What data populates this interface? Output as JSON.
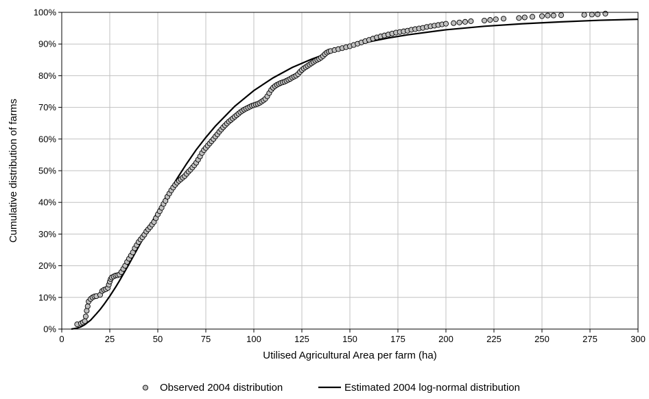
{
  "chart_data": {
    "type": "scatter",
    "xlabel": "Utilised Agricultural Area per farm (ha)",
    "ylabel": "Cumulative distribution of farms",
    "xlim": [
      0,
      300
    ],
    "ylim": [
      0,
      1
    ],
    "x_ticks": [
      0,
      25,
      50,
      75,
      100,
      125,
      150,
      175,
      200,
      225,
      250,
      275,
      300
    ],
    "x_tick_labels": [
      "0",
      "25",
      "50",
      "75",
      "100",
      "125",
      "150",
      "175",
      "200",
      "225",
      "250",
      "275",
      "300"
    ],
    "y_ticks": [
      0,
      0.1,
      0.2,
      0.3,
      0.4,
      0.5,
      0.6,
      0.7,
      0.8,
      0.9,
      1.0
    ],
    "y_tick_labels": [
      "0%",
      "10%",
      "20%",
      "30%",
      "40%",
      "50%",
      "60%",
      "70%",
      "80%",
      "90%",
      "100%"
    ],
    "grid": true,
    "legend_position": "bottom",
    "series": [
      {
        "name": "Observed 2004 distribution",
        "kind": "scatter",
        "marker": "circle",
        "color": "#bfbfbf",
        "edge_color": "#000000",
        "points": [
          [
            8,
            0.015
          ],
          [
            10,
            0.018
          ],
          [
            11,
            0.021
          ],
          [
            12,
            0.025
          ],
          [
            12.5,
            0.04
          ],
          [
            13,
            0.058
          ],
          [
            13.5,
            0.072
          ],
          [
            14,
            0.087
          ],
          [
            15,
            0.095
          ],
          [
            16,
            0.1
          ],
          [
            17,
            0.103
          ],
          [
            18,
            0.104
          ],
          [
            20,
            0.108
          ],
          [
            21,
            0.12
          ],
          [
            22,
            0.124
          ],
          [
            23,
            0.126
          ],
          [
            24,
            0.13
          ],
          [
            24.5,
            0.14
          ],
          [
            25,
            0.15
          ],
          [
            25.5,
            0.158
          ],
          [
            26,
            0.163
          ],
          [
            27,
            0.166
          ],
          [
            28,
            0.169
          ],
          [
            29,
            0.17
          ],
          [
            30,
            0.172
          ],
          [
            31,
            0.18
          ],
          [
            32,
            0.19
          ],
          [
            33,
            0.2
          ],
          [
            34,
            0.212
          ],
          [
            35,
            0.222
          ],
          [
            36,
            0.232
          ],
          [
            37,
            0.242
          ],
          [
            38,
            0.255
          ],
          [
            39,
            0.265
          ],
          [
            40,
            0.275
          ],
          [
            41,
            0.283
          ],
          [
            42,
            0.29
          ],
          [
            43,
            0.298
          ],
          [
            44,
            0.308
          ],
          [
            45,
            0.315
          ],
          [
            46,
            0.322
          ],
          [
            47,
            0.33
          ],
          [
            48,
            0.338
          ],
          [
            49,
            0.35
          ],
          [
            50,
            0.362
          ],
          [
            51,
            0.372
          ],
          [
            52,
            0.383
          ],
          [
            53,
            0.395
          ],
          [
            54,
            0.405
          ],
          [
            55,
            0.418
          ],
          [
            56,
            0.428
          ],
          [
            57,
            0.438
          ],
          [
            58,
            0.447
          ],
          [
            59,
            0.455
          ],
          [
            60,
            0.462
          ],
          [
            61,
            0.468
          ],
          [
            62,
            0.473
          ],
          [
            63,
            0.478
          ],
          [
            64,
            0.483
          ],
          [
            65,
            0.49
          ],
          [
            66,
            0.497
          ],
          [
            67,
            0.503
          ],
          [
            68,
            0.51
          ],
          [
            69,
            0.517
          ],
          [
            70,
            0.525
          ],
          [
            71,
            0.535
          ],
          [
            72,
            0.545
          ],
          [
            73,
            0.556
          ],
          [
            74,
            0.565
          ],
          [
            75,
            0.572
          ],
          [
            76,
            0.579
          ],
          [
            77,
            0.586
          ],
          [
            78,
            0.593
          ],
          [
            79,
            0.6
          ],
          [
            80,
            0.608
          ],
          [
            81,
            0.615
          ],
          [
            82,
            0.623
          ],
          [
            83,
            0.63
          ],
          [
            84,
            0.637
          ],
          [
            85,
            0.643
          ],
          [
            86,
            0.649
          ],
          [
            87,
            0.655
          ],
          [
            88,
            0.66
          ],
          [
            89,
            0.665
          ],
          [
            90,
            0.67
          ],
          [
            91,
            0.675
          ],
          [
            92,
            0.68
          ],
          [
            93,
            0.685
          ],
          [
            94,
            0.689
          ],
          [
            95,
            0.693
          ],
          [
            96,
            0.696
          ],
          [
            97,
            0.699
          ],
          [
            98,
            0.702
          ],
          [
            99,
            0.705
          ],
          [
            100,
            0.707
          ],
          [
            101,
            0.709
          ],
          [
            102,
            0.711
          ],
          [
            103,
            0.714
          ],
          [
            104,
            0.718
          ],
          [
            105,
            0.722
          ],
          [
            106,
            0.727
          ],
          [
            107,
            0.735
          ],
          [
            108,
            0.745
          ],
          [
            109,
            0.755
          ],
          [
            110,
            0.762
          ],
          [
            111,
            0.767
          ],
          [
            112,
            0.771
          ],
          [
            113,
            0.774
          ],
          [
            114,
            0.777
          ],
          [
            115,
            0.779
          ],
          [
            116,
            0.781
          ],
          [
            117,
            0.784
          ],
          [
            118,
            0.787
          ],
          [
            119,
            0.79
          ],
          [
            120,
            0.794
          ],
          [
            121,
            0.797
          ],
          [
            122,
            0.8
          ],
          [
            123,
            0.805
          ],
          [
            124,
            0.812
          ],
          [
            125,
            0.818
          ],
          [
            126,
            0.823
          ],
          [
            127,
            0.827
          ],
          [
            128,
            0.831
          ],
          [
            129,
            0.835
          ],
          [
            130,
            0.839
          ],
          [
            131,
            0.843
          ],
          [
            132,
            0.847
          ],
          [
            133,
            0.85
          ],
          [
            134,
            0.853
          ],
          [
            135,
            0.857
          ],
          [
            136,
            0.862
          ],
          [
            137,
            0.868
          ],
          [
            138,
            0.873
          ],
          [
            139,
            0.876
          ],
          [
            140,
            0.878
          ],
          [
            142,
            0.881
          ],
          [
            144,
            0.884
          ],
          [
            146,
            0.887
          ],
          [
            148,
            0.89
          ],
          [
            150,
            0.893
          ],
          [
            152,
            0.897
          ],
          [
            154,
            0.901
          ],
          [
            156,
            0.905
          ],
          [
            158,
            0.909
          ],
          [
            160,
            0.913
          ],
          [
            162,
            0.917
          ],
          [
            164,
            0.921
          ],
          [
            166,
            0.924
          ],
          [
            168,
            0.927
          ],
          [
            170,
            0.93
          ],
          [
            172,
            0.933
          ],
          [
            174,
            0.936
          ],
          [
            176,
            0.938
          ],
          [
            178,
            0.94
          ],
          [
            180,
            0.942
          ],
          [
            182,
            0.945
          ],
          [
            184,
            0.947
          ],
          [
            186,
            0.949
          ],
          [
            188,
            0.951
          ],
          [
            190,
            0.954
          ],
          [
            192,
            0.956
          ],
          [
            194,
            0.958
          ],
          [
            196,
            0.96
          ],
          [
            198,
            0.962
          ],
          [
            200,
            0.964
          ],
          [
            204,
            0.966
          ],
          [
            207,
            0.968
          ],
          [
            210,
            0.97
          ],
          [
            213,
            0.972
          ],
          [
            220,
            0.974
          ],
          [
            223,
            0.976
          ],
          [
            226,
            0.978
          ],
          [
            230,
            0.98
          ],
          [
            238,
            0.982
          ],
          [
            241,
            0.984
          ],
          [
            245,
            0.986
          ],
          [
            250,
            0.988
          ],
          [
            253,
            0.99
          ],
          [
            256,
            0.99
          ],
          [
            260,
            0.991
          ],
          [
            272,
            0.992
          ],
          [
            276,
            0.993
          ],
          [
            279,
            0.994
          ],
          [
            283,
            0.996
          ]
        ]
      },
      {
        "name": "Estimated 2004 log-normal distribution",
        "kind": "line",
        "color": "#000000",
        "points": [
          [
            5,
            0.0
          ],
          [
            8,
            0.003
          ],
          [
            10,
            0.007
          ],
          [
            12,
            0.014
          ],
          [
            15,
            0.028
          ],
          [
            18,
            0.048
          ],
          [
            20,
            0.062
          ],
          [
            22,
            0.078
          ],
          [
            25,
            0.104
          ],
          [
            28,
            0.132
          ],
          [
            30,
            0.152
          ],
          [
            35,
            0.205
          ],
          [
            40,
            0.26
          ],
          [
            45,
            0.316
          ],
          [
            50,
            0.372
          ],
          [
            55,
            0.425
          ],
          [
            60,
            0.475
          ],
          [
            65,
            0.522
          ],
          [
            70,
            0.566
          ],
          [
            75,
            0.605
          ],
          [
            80,
            0.641
          ],
          [
            90,
            0.703
          ],
          [
            100,
            0.753
          ],
          [
            110,
            0.793
          ],
          [
            120,
            0.826
          ],
          [
            130,
            0.852
          ],
          [
            140,
            0.874
          ],
          [
            150,
            0.892
          ],
          [
            160,
            0.907
          ],
          [
            170,
            0.919
          ],
          [
            180,
            0.929
          ],
          [
            200,
            0.945
          ],
          [
            220,
            0.956
          ],
          [
            240,
            0.964
          ],
          [
            260,
            0.97
          ],
          [
            280,
            0.975
          ],
          [
            300,
            0.978
          ]
        ]
      }
    ]
  }
}
